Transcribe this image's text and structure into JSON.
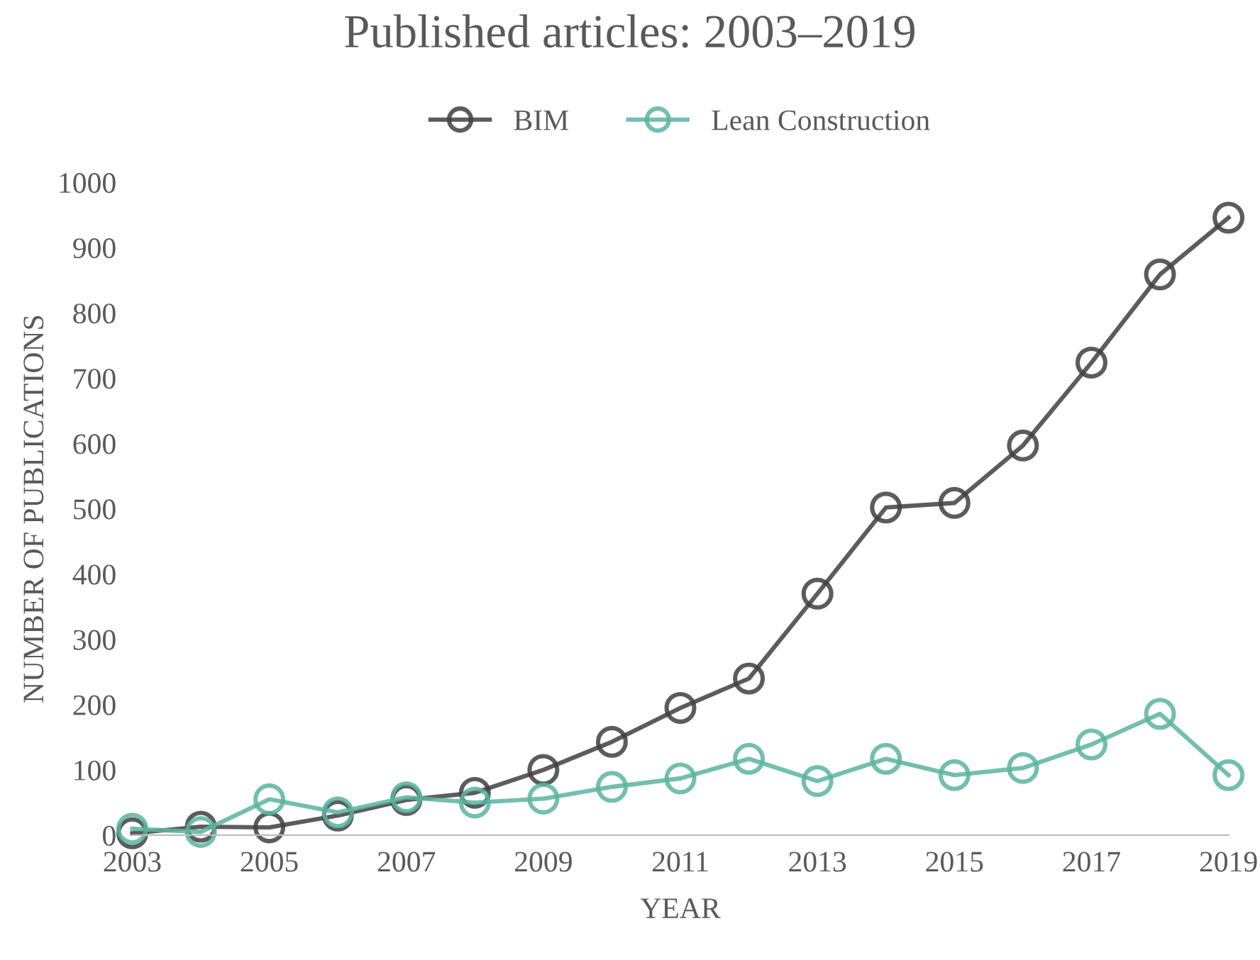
{
  "chart_data": {
    "type": "line",
    "title": "Published articles: 2003–2019",
    "xlabel": "YEAR",
    "ylabel": "NUMBER OF PUBLICATIONS",
    "x": [
      2003,
      2004,
      2005,
      2006,
      2007,
      2008,
      2009,
      2010,
      2011,
      2012,
      2013,
      2014,
      2015,
      2016,
      2017,
      2018,
      2019
    ],
    "series": [
      {
        "name": "BIM",
        "color": "#404040",
        "values": [
          3,
          13,
          12,
          30,
          54,
          65,
          100,
          143,
          195,
          240,
          370,
          502,
          509,
          597,
          724,
          859,
          946
        ]
      },
      {
        "name": "Lean Construction",
        "color": "#5ab4a0",
        "values": [
          10,
          5,
          55,
          35,
          58,
          50,
          56,
          74,
          87,
          117,
          83,
          117,
          92,
          103,
          139,
          186,
          92
        ]
      }
    ],
    "xlim": [
      2003,
      2019
    ],
    "xticks": [
      2003,
      2005,
      2007,
      2009,
      2011,
      2013,
      2015,
      2017,
      2019
    ],
    "ylim": [
      0,
      1000
    ],
    "yticks": [
      0,
      100,
      200,
      300,
      400,
      500,
      600,
      700,
      800,
      900,
      1000
    ],
    "grid": false,
    "legend": "top",
    "marker": "circle",
    "line_style": "solid"
  }
}
